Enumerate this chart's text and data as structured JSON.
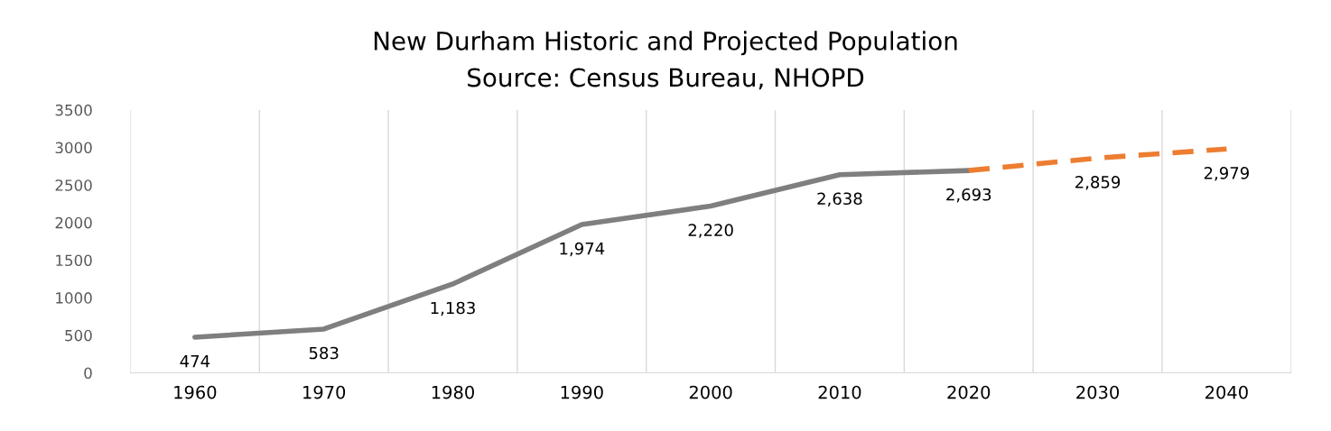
{
  "chart_data": {
    "type": "line",
    "title": "New Durham Historic and Projected Population",
    "subtitle": "Source: Census Bureau, NHOPD",
    "categories": [
      "1960",
      "1970",
      "1980",
      "1990",
      "2000",
      "2010",
      "2020",
      "2030",
      "2040"
    ],
    "series": [
      {
        "color": "#7f7f7f",
        "line_style": "solid",
        "values": [
          474,
          583,
          1183,
          1974,
          2220,
          2638,
          2693,
          null,
          null
        ],
        "value_labels": [
          "474",
          "583",
          "1,183",
          "1,974",
          "2,220",
          "2,638",
          "2,693",
          null,
          null
        ]
      },
      {
        "color": "#ed7d31",
        "line_style": "dashed",
        "values": [
          null,
          null,
          null,
          null,
          null,
          null,
          2693,
          2859,
          2979
        ],
        "value_labels": [
          null,
          null,
          null,
          null,
          null,
          null,
          null,
          "2,859",
          "2,979"
        ]
      }
    ],
    "ylim": [
      0,
      3500
    ],
    "yticks": [
      0,
      500,
      1000,
      1500,
      2000,
      2500,
      3000,
      3500
    ],
    "grid": "x",
    "legend": false,
    "marker": "none"
  }
}
